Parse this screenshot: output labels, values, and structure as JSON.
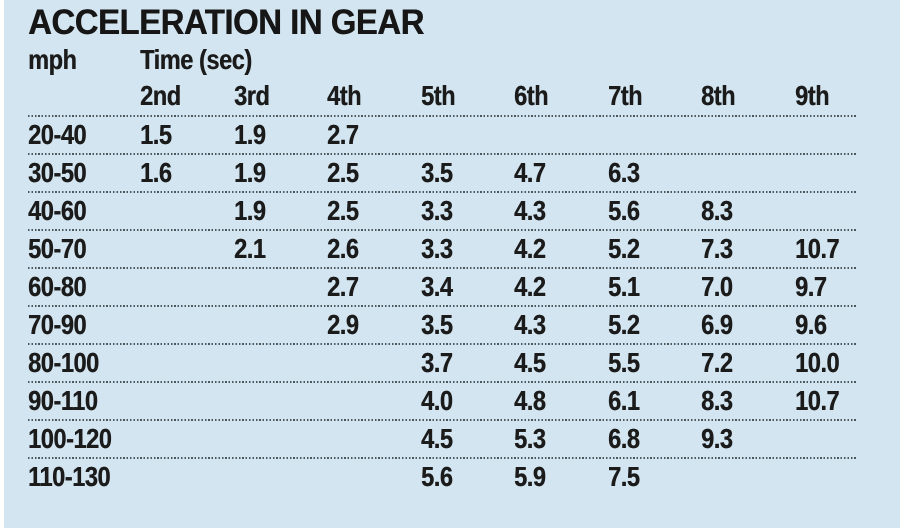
{
  "title": "ACCELERATION IN GEAR",
  "chart_data": {
    "type": "table",
    "title": "ACCELERATION IN GEAR",
    "row_header": "mph",
    "group_header": "Time (sec)",
    "columns": [
      "2nd",
      "3rd",
      "4th",
      "5th",
      "6th",
      "7th",
      "8th",
      "9th"
    ],
    "rows": [
      {
        "mph": "20-40",
        "times": [
          "1.5",
          "1.9",
          "2.7",
          "",
          "",
          "",
          "",
          ""
        ]
      },
      {
        "mph": "30-50",
        "times": [
          "1.6",
          "1.9",
          "2.5",
          "3.5",
          "4.7",
          "6.3",
          "",
          ""
        ]
      },
      {
        "mph": "40-60",
        "times": [
          "",
          "1.9",
          "2.5",
          "3.3",
          "4.3",
          "5.6",
          "8.3",
          ""
        ]
      },
      {
        "mph": "50-70",
        "times": [
          "",
          "2.1",
          "2.6",
          "3.3",
          "4.2",
          "5.2",
          "7.3",
          "10.7"
        ]
      },
      {
        "mph": "60-80",
        "times": [
          "",
          "",
          "2.7",
          "3.4",
          "4.2",
          "5.1",
          "7.0",
          "9.7"
        ]
      },
      {
        "mph": "70-90",
        "times": [
          "",
          "",
          "2.9",
          "3.5",
          "4.3",
          "5.2",
          "6.9",
          "9.6"
        ]
      },
      {
        "mph": "80-100",
        "times": [
          "",
          "",
          "",
          "3.7",
          "4.5",
          "5.5",
          "7.2",
          "10.0"
        ]
      },
      {
        "mph": "90-110",
        "times": [
          "",
          "",
          "",
          "4.0",
          "4.8",
          "6.1",
          "8.3",
          "10.7"
        ]
      },
      {
        "mph": "100-120",
        "times": [
          "",
          "",
          "",
          "4.5",
          "5.3",
          "6.8",
          "9.3",
          ""
        ]
      },
      {
        "mph": "110-130",
        "times": [
          "",
          "",
          "",
          "5.6",
          "5.9",
          "7.5",
          "",
          ""
        ]
      }
    ]
  },
  "colors": {
    "background": "#d3e5f0",
    "text": "#1b1b1b",
    "rule_dots": "#4d575e"
  }
}
